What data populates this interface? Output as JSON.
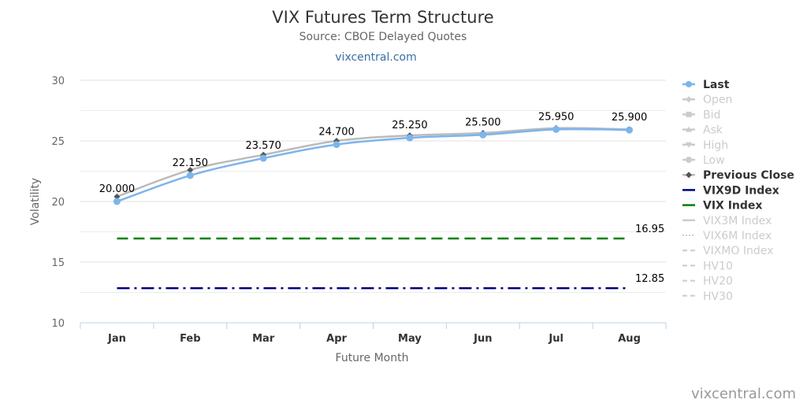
{
  "chart_data": {
    "type": "line",
    "title": "VIX Futures Term Structure",
    "subtitle": "Source: CBOE Delayed Quotes",
    "link_text": "vixcentral.com",
    "credit": "vixcentral.com",
    "xlabel": "Future Month",
    "ylabel": "Volatility",
    "ylim": [
      10,
      30
    ],
    "yticks": [
      10,
      15,
      20,
      25,
      30
    ],
    "grid": true,
    "legend_position": "right",
    "categories": [
      "Jan",
      "Feb",
      "Mar",
      "Apr",
      "May",
      "Jun",
      "Jul",
      "Aug"
    ],
    "series": [
      {
        "name": "Last",
        "values": [
          20.0,
          22.15,
          23.57,
          24.7,
          25.25,
          25.5,
          25.95,
          25.9
        ],
        "labels": [
          "20.000",
          "22.150",
          "23.570",
          "24.700",
          "25.250",
          "25.500",
          "25.950",
          "25.900"
        ],
        "color": "#7cb5ec",
        "visible": true
      },
      {
        "name": "Previous Close",
        "values": [
          20.4,
          22.6,
          23.85,
          25.0,
          25.45,
          25.65,
          26.05,
          25.95
        ],
        "color": "#bbbbbb",
        "marker_color": "#555555",
        "visible": true
      }
    ],
    "reference_lines": [
      {
        "name": "VIX9D Index",
        "value": 12.85,
        "label": "12.85",
        "color": "#00007f",
        "style": "dashdot"
      },
      {
        "name": "VIX Index",
        "value": 16.95,
        "label": "16.95",
        "color": "#008000",
        "style": "dash"
      }
    ],
    "legend": [
      {
        "name": "Last",
        "active": true,
        "symbol": "line-circle",
        "color": "#7cb5ec"
      },
      {
        "name": "Open",
        "active": false,
        "symbol": "line-diamond"
      },
      {
        "name": "Bid",
        "active": false,
        "symbol": "line-square"
      },
      {
        "name": "Ask",
        "active": false,
        "symbol": "line-triangle"
      },
      {
        "name": "High",
        "active": false,
        "symbol": "line-triangle-down"
      },
      {
        "name": "Low",
        "active": false,
        "symbol": "line-circle"
      },
      {
        "name": "Previous Close",
        "active": true,
        "symbol": "line-diamond",
        "color": "#bbbbbb",
        "marker_color": "#555555"
      },
      {
        "name": "VIX9D Index",
        "active": true,
        "symbol": "line",
        "color": "#00007f"
      },
      {
        "name": "VIX Index",
        "active": true,
        "symbol": "line",
        "color": "#008000"
      },
      {
        "name": "VIX3M Index",
        "active": false,
        "symbol": "line"
      },
      {
        "name": "VIX6M Index",
        "active": false,
        "symbol": "dotted"
      },
      {
        "name": "VIXMO Index",
        "active": false,
        "symbol": "dashed"
      },
      {
        "name": "HV10",
        "active": false,
        "symbol": "dashed"
      },
      {
        "name": "HV20",
        "active": false,
        "symbol": "dashed"
      },
      {
        "name": "HV30",
        "active": false,
        "symbol": "dashed"
      }
    ],
    "colors": {
      "inactive": "#cccccc",
      "active_text": "#333333",
      "grid": "#e6e6e6"
    }
  }
}
